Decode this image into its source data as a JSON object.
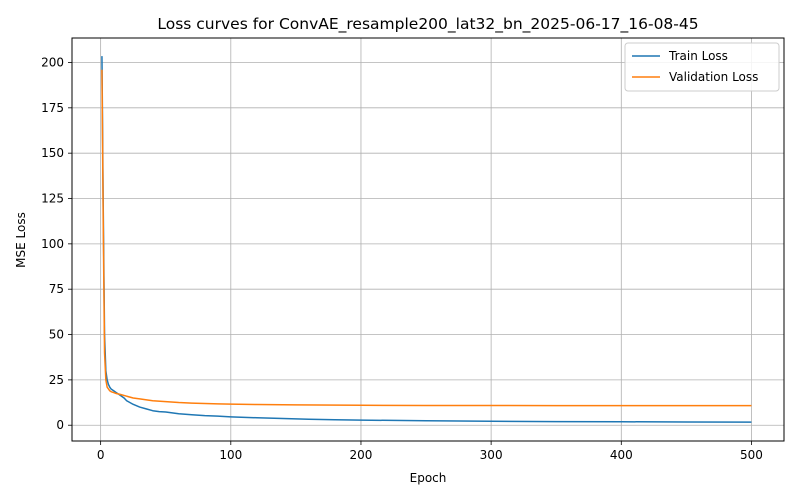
{
  "chart_data": {
    "type": "line",
    "title": "Loss curves for ConvAE_resample200_lat32_bn_2025-06-17_16-08-45",
    "xlabel": "Epoch",
    "ylabel": "MSE Loss",
    "xlim": [
      -22,
      525
    ],
    "ylim": [
      -8.7,
      213.5
    ],
    "xticks": [
      0,
      100,
      200,
      300,
      400,
      500
    ],
    "yticks": [
      0,
      25,
      50,
      75,
      100,
      125,
      150,
      175,
      200
    ],
    "grid": true,
    "legend_position": "top-right",
    "series": [
      {
        "name": "Train Loss",
        "color": "#1f77b4",
        "x": [
          1,
          2,
          3,
          4,
          5,
          6,
          7,
          8,
          10,
          12,
          15,
          18,
          20,
          25,
          30,
          35,
          40,
          45,
          50,
          55,
          60,
          70,
          80,
          90,
          100,
          120,
          140,
          160,
          180,
          200,
          250,
          300,
          350,
          400,
          450,
          500
        ],
        "y": [
          203.5,
          120,
          50,
          30,
          25,
          22.5,
          21,
          20,
          19,
          18,
          16.5,
          15,
          13.5,
          11.5,
          10,
          9,
          8,
          7.5,
          7.3,
          6.8,
          6.3,
          5.8,
          5.3,
          5.0,
          4.6,
          4.1,
          3.7,
          3.3,
          3.0,
          2.8,
          2.5,
          2.2,
          2.0,
          1.9,
          1.8,
          1.7
        ]
      },
      {
        "name": "Validation Loss",
        "color": "#ff7f0e",
        "x": [
          1,
          2,
          3,
          4,
          5,
          6,
          7,
          8,
          10,
          12,
          15,
          20,
          25,
          30,
          40,
          50,
          60,
          70,
          80,
          90,
          100,
          120,
          150,
          200,
          250,
          300,
          350,
          400,
          450,
          500
        ],
        "y": [
          196,
          110,
          40,
          25,
          21,
          20,
          19,
          18.5,
          18,
          17.5,
          17,
          16,
          15,
          14.5,
          13.5,
          13,
          12.5,
          12.2,
          12,
          11.8,
          11.6,
          11.4,
          11.2,
          11.0,
          10.9,
          10.9,
          10.8,
          10.8,
          10.8,
          10.8
        ]
      }
    ]
  }
}
